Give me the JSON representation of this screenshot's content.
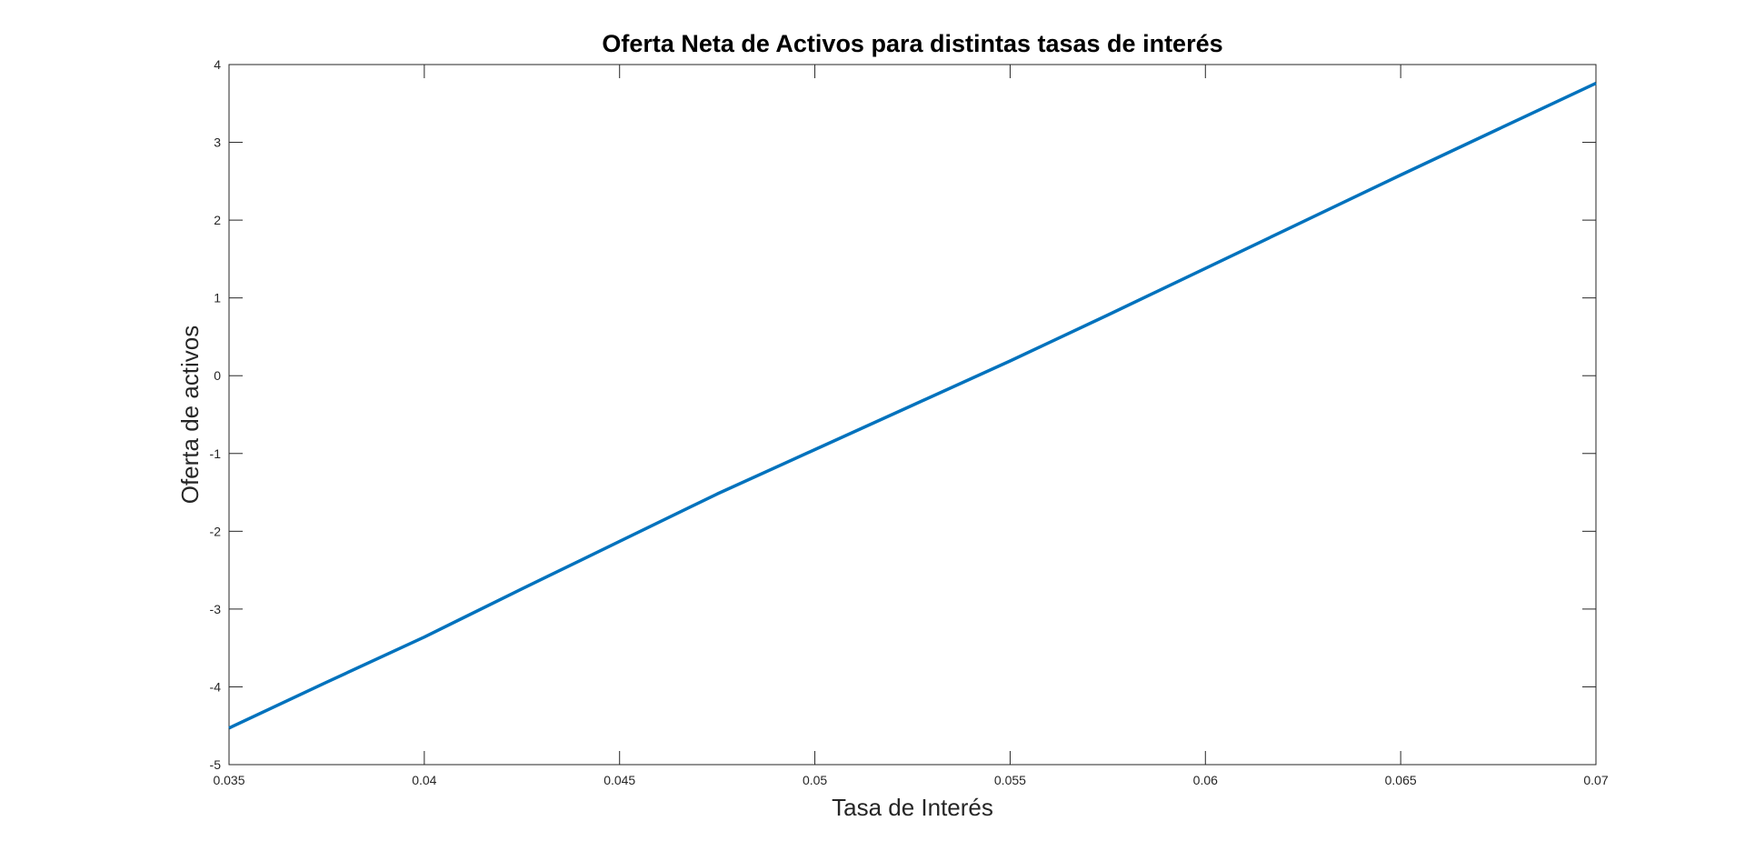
{
  "chart_data": {
    "type": "line",
    "title": "Oferta Neta de Activos para distintas tasas de interés",
    "xlabel": "Tasa de Interés",
    "ylabel": "Oferta de activos",
    "xlim": [
      0.035,
      0.07
    ],
    "ylim": [
      -5,
      4
    ],
    "xticks": [
      0.035,
      0.04,
      0.045,
      0.05,
      0.055,
      0.06,
      0.065,
      0.07
    ],
    "xtick_labels": [
      "0.035",
      "0.04",
      "0.045",
      "0.05",
      "0.055",
      "0.06",
      "0.065",
      "0.07"
    ],
    "yticks": [
      -5,
      -4,
      -3,
      -2,
      -1,
      0,
      1,
      2,
      3,
      4
    ],
    "ytick_labels": [
      "-5",
      "-4",
      "-3",
      "-2",
      "-1",
      "0",
      "1",
      "2",
      "3",
      "4"
    ],
    "grid": false,
    "series": [
      {
        "color": "#0072BD",
        "x": [
          0.035,
          0.0375,
          0.04,
          0.0425,
          0.045,
          0.0475,
          0.05,
          0.0525,
          0.055,
          0.0575,
          0.06,
          0.0625,
          0.065,
          0.0675,
          0.07
        ],
        "y": [
          -4.53,
          -3.94,
          -3.36,
          -2.74,
          -2.13,
          -1.52,
          -0.95,
          -0.38,
          0.19,
          0.78,
          1.38,
          1.98,
          2.58,
          3.17,
          3.76
        ]
      }
    ]
  }
}
